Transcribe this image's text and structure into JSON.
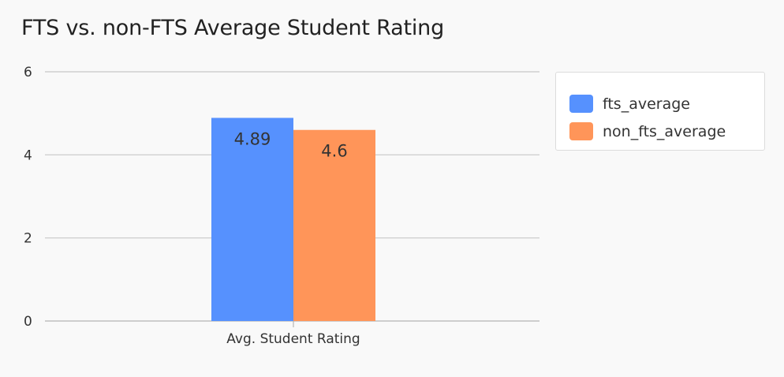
{
  "title": "FTS vs. non-FTS Average Student Rating",
  "chart_data": {
    "type": "bar",
    "title": "FTS vs. non-FTS Average Student Rating",
    "categories": [
      "Avg. Student Rating"
    ],
    "series": [
      {
        "name": "fts_average",
        "values": [
          4.89
        ],
        "color": "#5691fe"
      },
      {
        "name": "non_fts_average",
        "values": [
          4.6
        ],
        "color": "#ff9559"
      }
    ],
    "data_labels": [
      "4.89",
      "4.6"
    ],
    "ylim": [
      0,
      6
    ],
    "yticks": [
      "0",
      "2",
      "4",
      "6"
    ],
    "grid": true,
    "legend_position": "top-right"
  }
}
